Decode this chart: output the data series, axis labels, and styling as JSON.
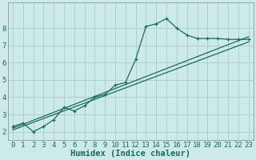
{
  "xlabel": "Humidex (Indice chaleur)",
  "ylabel": "",
  "background_color": "#cceaea",
  "grid_color": "#aacccc",
  "line_color": "#1a6b5a",
  "xlim": [
    -0.5,
    23.5
  ],
  "ylim": [
    1.5,
    9.5
  ],
  "xticks": [
    0,
    1,
    2,
    3,
    4,
    5,
    6,
    7,
    8,
    9,
    10,
    11,
    12,
    13,
    14,
    15,
    16,
    17,
    18,
    19,
    20,
    21,
    22,
    23
  ],
  "yticks": [
    2,
    3,
    4,
    5,
    6,
    7,
    8
  ],
  "main_line_x": [
    0,
    1,
    2,
    3,
    4,
    5,
    6,
    7,
    8,
    9,
    10,
    11,
    12,
    13,
    14,
    15,
    16,
    17,
    18,
    19,
    20,
    21,
    22,
    23
  ],
  "main_line_y": [
    2.3,
    2.5,
    2.0,
    2.3,
    2.7,
    3.4,
    3.2,
    3.5,
    4.0,
    4.15,
    4.7,
    4.85,
    6.2,
    8.1,
    8.25,
    8.55,
    8.0,
    7.6,
    7.4,
    7.4,
    7.4,
    7.35,
    7.35,
    7.35
  ],
  "linear_line1_x": [
    0,
    23
  ],
  "linear_line1_y": [
    2.2,
    7.5
  ],
  "linear_line2_x": [
    0,
    23
  ],
  "linear_line2_y": [
    2.1,
    7.2
  ],
  "fontsize_xlabel": 7.5,
  "tick_fontsize": 6.5
}
